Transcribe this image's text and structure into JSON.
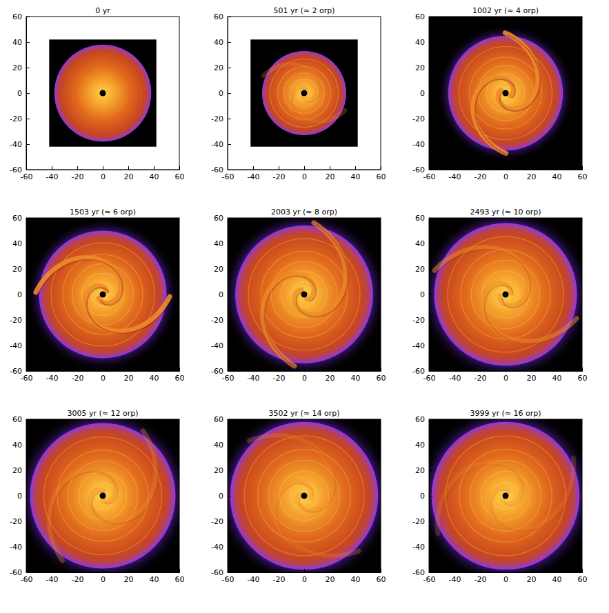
{
  "chart_data": [
    {
      "type": "image",
      "title": "0 yr",
      "xlim": [
        -60,
        60
      ],
      "ylim": [
        -60,
        60
      ],
      "xticks": [
        -60,
        -40,
        -20,
        0,
        20,
        40,
        60
      ],
      "yticks": [
        -60,
        -40,
        -20,
        0,
        20,
        40,
        60
      ],
      "image_extent": [
        -42,
        42
      ],
      "disk_radius": 38
    },
    {
      "type": "image",
      "title": "501 yr (≈ 2 orp)",
      "xlim": [
        -60,
        60
      ],
      "ylim": [
        -60,
        60
      ],
      "xticks": [
        -60,
        -40,
        -20,
        0,
        20,
        40,
        60
      ],
      "yticks": [
        -60,
        -40,
        -20,
        0,
        20,
        40,
        60
      ],
      "image_extent": [
        -42,
        42
      ],
      "disk_radius": 33
    },
    {
      "type": "image",
      "title": "1002 yr (≈ 4 orp)",
      "xlim": [
        -60,
        60
      ],
      "ylim": [
        -60,
        60
      ],
      "xticks": [
        -60,
        -40,
        -20,
        0,
        20,
        40,
        60
      ],
      "yticks": [
        -60,
        -40,
        -20,
        0,
        20,
        40,
        60
      ],
      "image_extent": [
        -60,
        60
      ],
      "disk_radius": 45
    },
    {
      "type": "image",
      "title": "1503 yr (≈ 6 orp)",
      "xlim": [
        -60,
        60
      ],
      "ylim": [
        -60,
        60
      ],
      "xticks": [
        -60,
        -40,
        -20,
        0,
        20,
        40,
        60
      ],
      "yticks": [
        -60,
        -40,
        -20,
        0,
        20,
        40,
        60
      ],
      "image_extent": [
        -60,
        60
      ],
      "disk_radius": 50
    },
    {
      "type": "image",
      "title": "2003 yr (≈ 8 orp)",
      "xlim": [
        -60,
        60
      ],
      "ylim": [
        -60,
        60
      ],
      "xticks": [
        -60,
        -40,
        -20,
        0,
        20,
        40,
        60
      ],
      "yticks": [
        -60,
        -40,
        -20,
        0,
        20,
        40,
        60
      ],
      "image_extent": [
        -60,
        60
      ],
      "disk_radius": 54
    },
    {
      "type": "image",
      "title": "2493 yr (≈ 10 orp)",
      "xlim": [
        -60,
        60
      ],
      "ylim": [
        -60,
        60
      ],
      "xticks": [
        -60,
        -40,
        -20,
        0,
        20,
        40,
        60
      ],
      "yticks": [
        -60,
        -40,
        -20,
        0,
        20,
        40,
        60
      ],
      "image_extent": [
        -60,
        60
      ],
      "disk_radius": 56
    },
    {
      "type": "image",
      "title": "3005 yr (≈ 12 orp)",
      "xlim": [
        -60,
        60
      ],
      "ylim": [
        -60,
        60
      ],
      "xticks": [
        -60,
        -40,
        -20,
        0,
        20,
        40,
        60
      ],
      "yticks": [
        -60,
        -40,
        -20,
        0,
        20,
        40,
        60
      ],
      "image_extent": [
        -60,
        60
      ],
      "disk_radius": 57
    },
    {
      "type": "image",
      "title": "3502 yr (≈ 14 orp)",
      "xlim": [
        -60,
        60
      ],
      "ylim": [
        -60,
        60
      ],
      "xticks": [
        -60,
        -40,
        -20,
        0,
        20,
        40,
        60
      ],
      "yticks": [
        -60,
        -40,
        -20,
        0,
        20,
        40,
        60
      ],
      "image_extent": [
        -60,
        60
      ],
      "disk_radius": 58
    },
    {
      "type": "image",
      "title": "3999 yr (≈ 16 orp)",
      "xlim": [
        -60,
        60
      ],
      "ylim": [
        -60,
        60
      ],
      "xticks": [
        -60,
        -40,
        -20,
        0,
        20,
        40,
        60
      ],
      "yticks": [
        -60,
        -40,
        -20,
        0,
        20,
        40,
        60
      ],
      "image_extent": [
        -60,
        60
      ],
      "disk_radius": 58
    }
  ]
}
